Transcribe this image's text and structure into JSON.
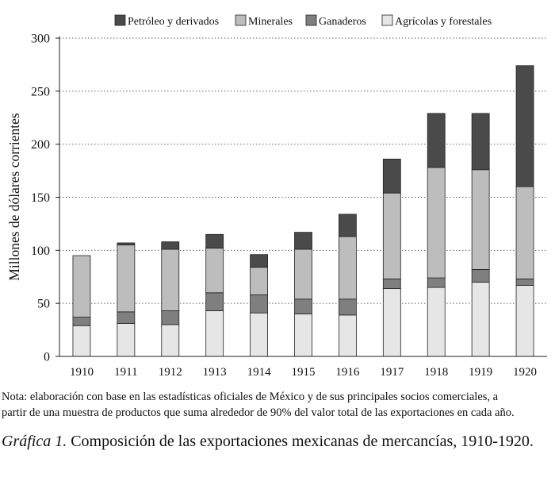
{
  "chart_data": {
    "type": "bar",
    "stacked": true,
    "categories": [
      "1910",
      "1911",
      "1912",
      "1913",
      "1914",
      "1915",
      "1916",
      "1917",
      "1918",
      "1919",
      "1920"
    ],
    "series": [
      {
        "name": "Agrícolas y forestales",
        "color": "#e6e6e6",
        "values": [
          29,
          31,
          30,
          43,
          41,
          40,
          39,
          64,
          65,
          70,
          67
        ]
      },
      {
        "name": "Ganaderos",
        "color": "#7f7f7f",
        "values": [
          8,
          11,
          13,
          17,
          17,
          14,
          15,
          9,
          9,
          12,
          6
        ]
      },
      {
        "name": "Minerales",
        "color": "#bdbdbd",
        "values": [
          58,
          63,
          58,
          42,
          26,
          47,
          59,
          81,
          104,
          94,
          87
        ]
      },
      {
        "name": "Petróleo y derivados",
        "color": "#4a4a4a",
        "values": [
          0,
          2,
          7,
          13,
          12,
          16,
          21,
          32,
          51,
          53,
          114
        ]
      }
    ],
    "legend_order": [
      "Petróleo y derivados",
      "Minerales",
      "Ganaderos",
      "Agrícolas y forestales"
    ],
    "ylabel": "Millones de dólares corrientes",
    "xlabel": "",
    "ylim": [
      0,
      300
    ],
    "yticks": [
      0,
      50,
      100,
      150,
      200,
      250,
      300
    ],
    "grid": "horizontal dotted",
    "legend_position": "top"
  },
  "note": {
    "line1": "Nota: elaboración con base en las estadísticas oficiales de México y de sus principales socios comerciales, a",
    "line2": "partir de una muestra de productos que suma alrededor de 90% del valor total de las exportaciones en cada año."
  },
  "caption": {
    "label": "Gráfica 1.",
    "text": " Composición de las exportaciones mexicanas de mercancías, 1910-1920."
  }
}
